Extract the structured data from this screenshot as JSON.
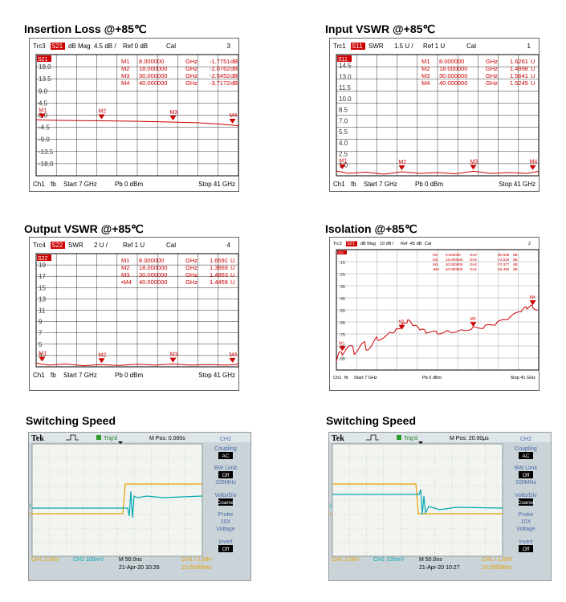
{
  "titles": {
    "t1": "Insertion Loss @+85℃",
    "t2": "Input VSWR @+85℃",
    "t3": "Output VSWR @+85℃",
    "t4": "Isolation @+85℃",
    "t5": "Switching Speed",
    "t6": "Switching Speed"
  },
  "chart_data": [
    {
      "type": "line",
      "title": "Insertion Loss @+85℃",
      "header": {
        "trace": "Trc3",
        "param": "S21",
        "format": "dB Mag",
        "scale": "4.5 dB /",
        "ref": "Ref 0 dB",
        "cal": "Cal",
        "channel_no": "3"
      },
      "yticks": [
        "18.0",
        "13.5",
        "9.0",
        "4.5",
        "0.0",
        "-4.5",
        "-9.0",
        "-13.5",
        "-18.0"
      ],
      "ylim": [
        -22.5,
        22.5
      ],
      "xlim": [
        7,
        41
      ],
      "markers": [
        {
          "name": "M1",
          "label": "M1",
          "freq": "8.000000",
          "unit": "GHz",
          "value": "-1.7751",
          "vunit": "dB",
          "x": 8,
          "y": -1.7751
        },
        {
          "name": "M2",
          "label": "M2",
          "freq": "18.000000",
          "unit": "GHz",
          "value": "-2.0762",
          "vunit": "dB",
          "x": 18,
          "y": -2.0762
        },
        {
          "name": "M3",
          "label": "M3",
          "freq": "30.000000",
          "unit": "GHz",
          "value": "-2.5452",
          "vunit": "dB",
          "x": 30,
          "y": -2.5452
        },
        {
          "name": "M4",
          "label": "M4",
          "freq": "40.000000",
          "unit": "GHz",
          "value": "-3.7172",
          "vunit": "dB",
          "x": 40,
          "y": -3.7172
        }
      ],
      "series": [
        {
          "x": [
            7,
            10,
            14,
            18,
            22,
            26,
            30,
            34,
            38,
            41
          ],
          "y": [
            -1.7,
            -1.9,
            -2.0,
            -2.08,
            -2.2,
            -2.35,
            -2.55,
            -2.8,
            -3.3,
            -3.9
          ]
        }
      ],
      "footer": {
        "ch": "Ch1",
        "fb": "fb",
        "start": "Start  7 GHz",
        "pb": "Pb   0 dBm",
        "stop": "Stop  41 GHz"
      },
      "colors": {
        "trace": "#cc0000",
        "grid": "#000000"
      }
    },
    {
      "type": "line",
      "title": "Input VSWR @+85℃",
      "header": {
        "trace": "Trc1",
        "param": "S11",
        "format": "SWR",
        "scale": "1.5 U /",
        "ref": "Ref 1 U",
        "cal": "Cal",
        "channel_no": "1"
      },
      "yticks": [
        "14.5",
        "13.0",
        "11.5",
        "10.0",
        "8.5",
        "7.0",
        "5.5",
        "4.0",
        "2.5",
        "1.0"
      ],
      "ylim": [
        1,
        16
      ],
      "xlim": [
        7,
        41
      ],
      "markers": [
        {
          "name": "M1",
          "label": "M1",
          "freq": "8.000000",
          "unit": "GHz",
          "value": "1.6261",
          "vunit": "U",
          "x": 8,
          "y": 1.6261
        },
        {
          "name": "M2",
          "label": "M2",
          "freq": "18.000000",
          "unit": "GHz",
          "value": "1.4998",
          "vunit": "U",
          "x": 18,
          "y": 1.4998
        },
        {
          "name": "M3",
          "label": "M3",
          "freq": "30.000000",
          "unit": "GHz",
          "value": "1.5641",
          "vunit": "U",
          "x": 30,
          "y": 1.5641
        },
        {
          "name": "M4",
          "label": "M4",
          "freq": "40.000000",
          "unit": "GHz",
          "value": "1.5245",
          "vunit": "U",
          "x": 40,
          "y": 1.5245
        }
      ],
      "series": [
        {
          "x": [
            7,
            9,
            12,
            15,
            18,
            21,
            24,
            27,
            30,
            33,
            36,
            39,
            41
          ],
          "y": [
            1.6,
            1.3,
            1.45,
            1.2,
            1.5,
            1.3,
            1.4,
            1.25,
            1.56,
            1.3,
            1.4,
            1.3,
            1.55
          ]
        }
      ],
      "footer": {
        "ch": "Ch1",
        "fb": "fb",
        "start": "Start  7 GHz",
        "pb": "Pb   0 dBm",
        "stop": "Stop  41 GHz"
      },
      "colors": {
        "trace": "#cc0000",
        "grid": "#000000"
      }
    },
    {
      "type": "line",
      "title": "Output VSWR @+85℃",
      "header": {
        "trace": "Trc4",
        "param": "S22",
        "format": "SWR",
        "scale": "2 U /",
        "ref": "Ref 1 U",
        "cal": "Cal",
        "channel_no": "4"
      },
      "yticks": [
        "19",
        "17",
        "15",
        "13",
        "11",
        "9",
        "7",
        "5",
        "3"
      ],
      "ylim": [
        1,
        21
      ],
      "xlim": [
        7,
        41
      ],
      "markers": [
        {
          "name": "M1",
          "label": "M1",
          "freq": "8.000000",
          "unit": "GHz",
          "value": "1.6591",
          "vunit": "U",
          "x": 8,
          "y": 1.6591
        },
        {
          "name": "M2",
          "label": "M2",
          "freq": "18.000000",
          "unit": "GHz",
          "value": "1.3869",
          "vunit": "U",
          "x": 18,
          "y": 1.3869
        },
        {
          "name": "M3",
          "label": "M3",
          "freq": "30.000000",
          "unit": "GHz",
          "value": "1.4863",
          "vunit": "U",
          "x": 30,
          "y": 1.4863
        },
        {
          "name": "M4",
          "label": "•M4",
          "freq": "40.000000",
          "unit": "GHz",
          "value": "1.4459",
          "vunit": "U",
          "x": 40,
          "y": 1.4459
        }
      ],
      "series": [
        {
          "x": [
            7,
            9,
            12,
            15,
            18,
            21,
            24,
            27,
            30,
            33,
            36,
            39,
            41
          ],
          "y": [
            1.65,
            1.3,
            1.5,
            1.2,
            1.39,
            1.25,
            1.45,
            1.3,
            1.49,
            1.3,
            1.4,
            1.3,
            1.45
          ]
        }
      ],
      "footer": {
        "ch": "Ch1",
        "fb": "fb",
        "start": "Start  7 GHz",
        "pb": "Pb   0 dBm",
        "stop": "Stop  41 GHz"
      },
      "colors": {
        "trace": "#cc0000",
        "grid": "#000000"
      }
    },
    {
      "type": "line",
      "title": "Isolation @+85℃",
      "header": {
        "trace": "Trc2",
        "param": "S21",
        "format": "dB Mag",
        "scale": "10 dB /",
        "ref": "Ref -45 dB",
        "cal": "Cal",
        "channel_no": "2"
      },
      "yticks": [
        "-15",
        "-25",
        "-35",
        "-45",
        "-55",
        "-65",
        "-75",
        "-85",
        "-95"
      ],
      "ylim": [
        -105,
        -5
      ],
      "xlim": [
        7,
        41
      ],
      "markers": [
        {
          "name": "M1",
          "label": "M1",
          "freq": "8.000000",
          "unit": "GHz",
          "value": "-90.508",
          "vunit": "dB",
          "x": 8,
          "y": -90.5
        },
        {
          "name": "M2",
          "label": "M2",
          "freq": "18.000000",
          "unit": "GHz",
          "value": "-72.830",
          "vunit": "dB",
          "x": 18,
          "y": -72.8
        },
        {
          "name": "M3",
          "label": "M3",
          "freq": "30.000000",
          "unit": "GHz",
          "value": "-70.377",
          "vunit": "dB",
          "x": 30,
          "y": -70.4
        },
        {
          "name": "M4",
          "label": "•M4",
          "freq": "40.000000",
          "unit": "GHz",
          "value": "-52.450",
          "vunit": "dB",
          "x": 40,
          "y": -52.45
        }
      ],
      "series": [
        {
          "x": [
            7,
            8,
            10,
            12,
            14,
            16,
            17,
            18,
            19,
            20,
            21,
            22,
            24,
            26,
            28,
            30,
            32,
            34,
            36,
            38,
            39,
            40,
            41
          ],
          "y": [
            -98,
            -90,
            -88,
            -85,
            -80,
            -74,
            -72,
            -68,
            -64,
            -68,
            -71,
            -73,
            -74,
            -73,
            -72,
            -70,
            -69,
            -66,
            -62,
            -56,
            -53,
            -52,
            -57
          ]
        }
      ],
      "footer": {
        "ch": "Ch1",
        "fb": "fb",
        "start": "Start  7 GHz",
        "pb": "Pb   0 dBm",
        "stop": "Stop  41 GHz"
      },
      "colors": {
        "trace": "#cc0000",
        "grid": "#000000"
      }
    }
  ],
  "scopes": [
    {
      "brand": "Tek",
      "trig": "Trig'd",
      "mpos": "M Pos: 0.000s",
      "side": [
        "CH2",
        "Coupling",
        "AC",
        "BW Limit",
        "Off",
        "100MHz",
        "Volts/Div",
        "Coarse",
        "Probe",
        "10X",
        "Voltage",
        "Invert",
        "Off"
      ],
      "bottom": {
        "ch1": "CH1  2.00V",
        "ch2": "CH2  100mV",
        "m": "M 50.0ns",
        "date": "21-Apr-20 10:26",
        "trig": "CH1  /  1.69V",
        "freq": "10.0000kHz"
      },
      "edge": "rise",
      "colors": {
        "ch1": "#e8a000",
        "ch2": "#00a8b0"
      }
    },
    {
      "brand": "Tek",
      "trig": "Trig'd",
      "mpos": "M Pos: 20.00μs",
      "side": [
        "CH2",
        "Coupling",
        "AC",
        "BW Limit",
        "Off",
        "100MHz",
        "Volts/Div",
        "Coarse",
        "Probe",
        "10X",
        "Voltage",
        "Invert",
        "Off"
      ],
      "bottom": {
        "ch1": "CH1  2.00V",
        "ch2": "CH2  100mV",
        "m": "M 50.0ns",
        "date": "21-Apr-20 10:27",
        "trig": "CH1  /  1.69V",
        "freq": "10.0000kHz"
      },
      "edge": "fall",
      "colors": {
        "ch1": "#e8a000",
        "ch2": "#00a8b0"
      }
    }
  ]
}
